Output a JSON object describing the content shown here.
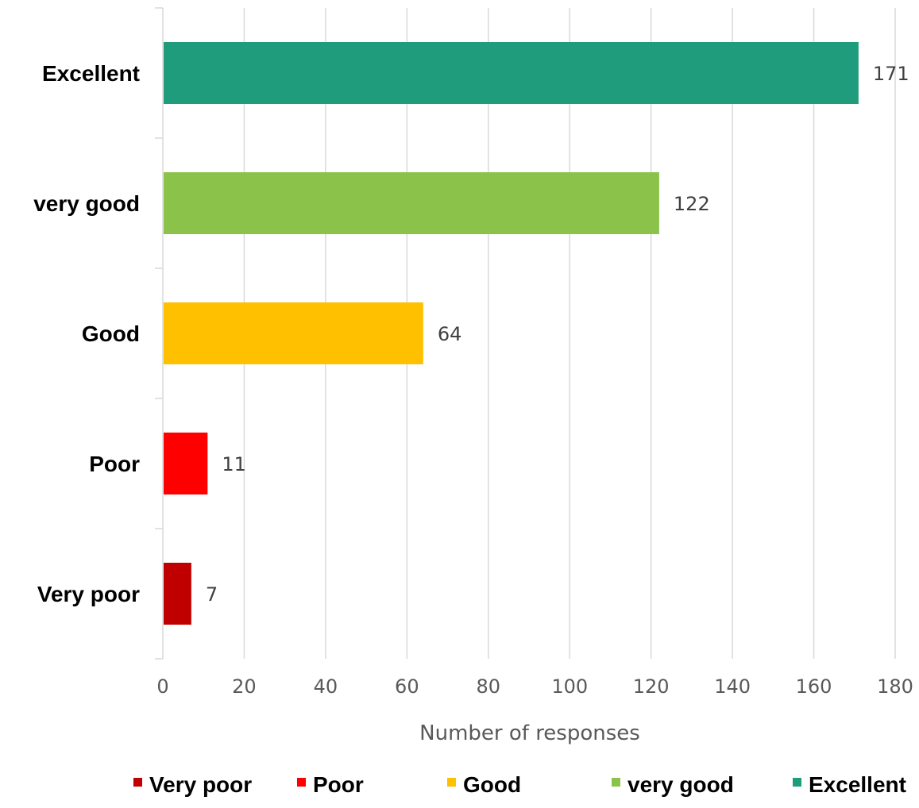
{
  "chart_data": {
    "type": "bar",
    "orientation": "horizontal",
    "title": "",
    "xlabel": "Number of responses",
    "ylabel": "",
    "xlim": [
      0,
      180
    ],
    "x_ticks": [
      "0",
      "20",
      "40",
      "60",
      "80",
      "100",
      "120",
      "140",
      "160",
      "180"
    ],
    "grid": "vertical",
    "legend_position": "bottom",
    "categories": [
      "Very poor",
      "Poor",
      "Good",
      "very good",
      "Excellent"
    ],
    "values": [
      7,
      11,
      64,
      122,
      171
    ],
    "colors": [
      "#c00000",
      "#ff0000",
      "#ffc000",
      "#8bc34a",
      "#1f9c7c"
    ],
    "legend": [
      "Very poor",
      "Poor",
      "Good",
      "very good",
      "Excellent"
    ]
  }
}
